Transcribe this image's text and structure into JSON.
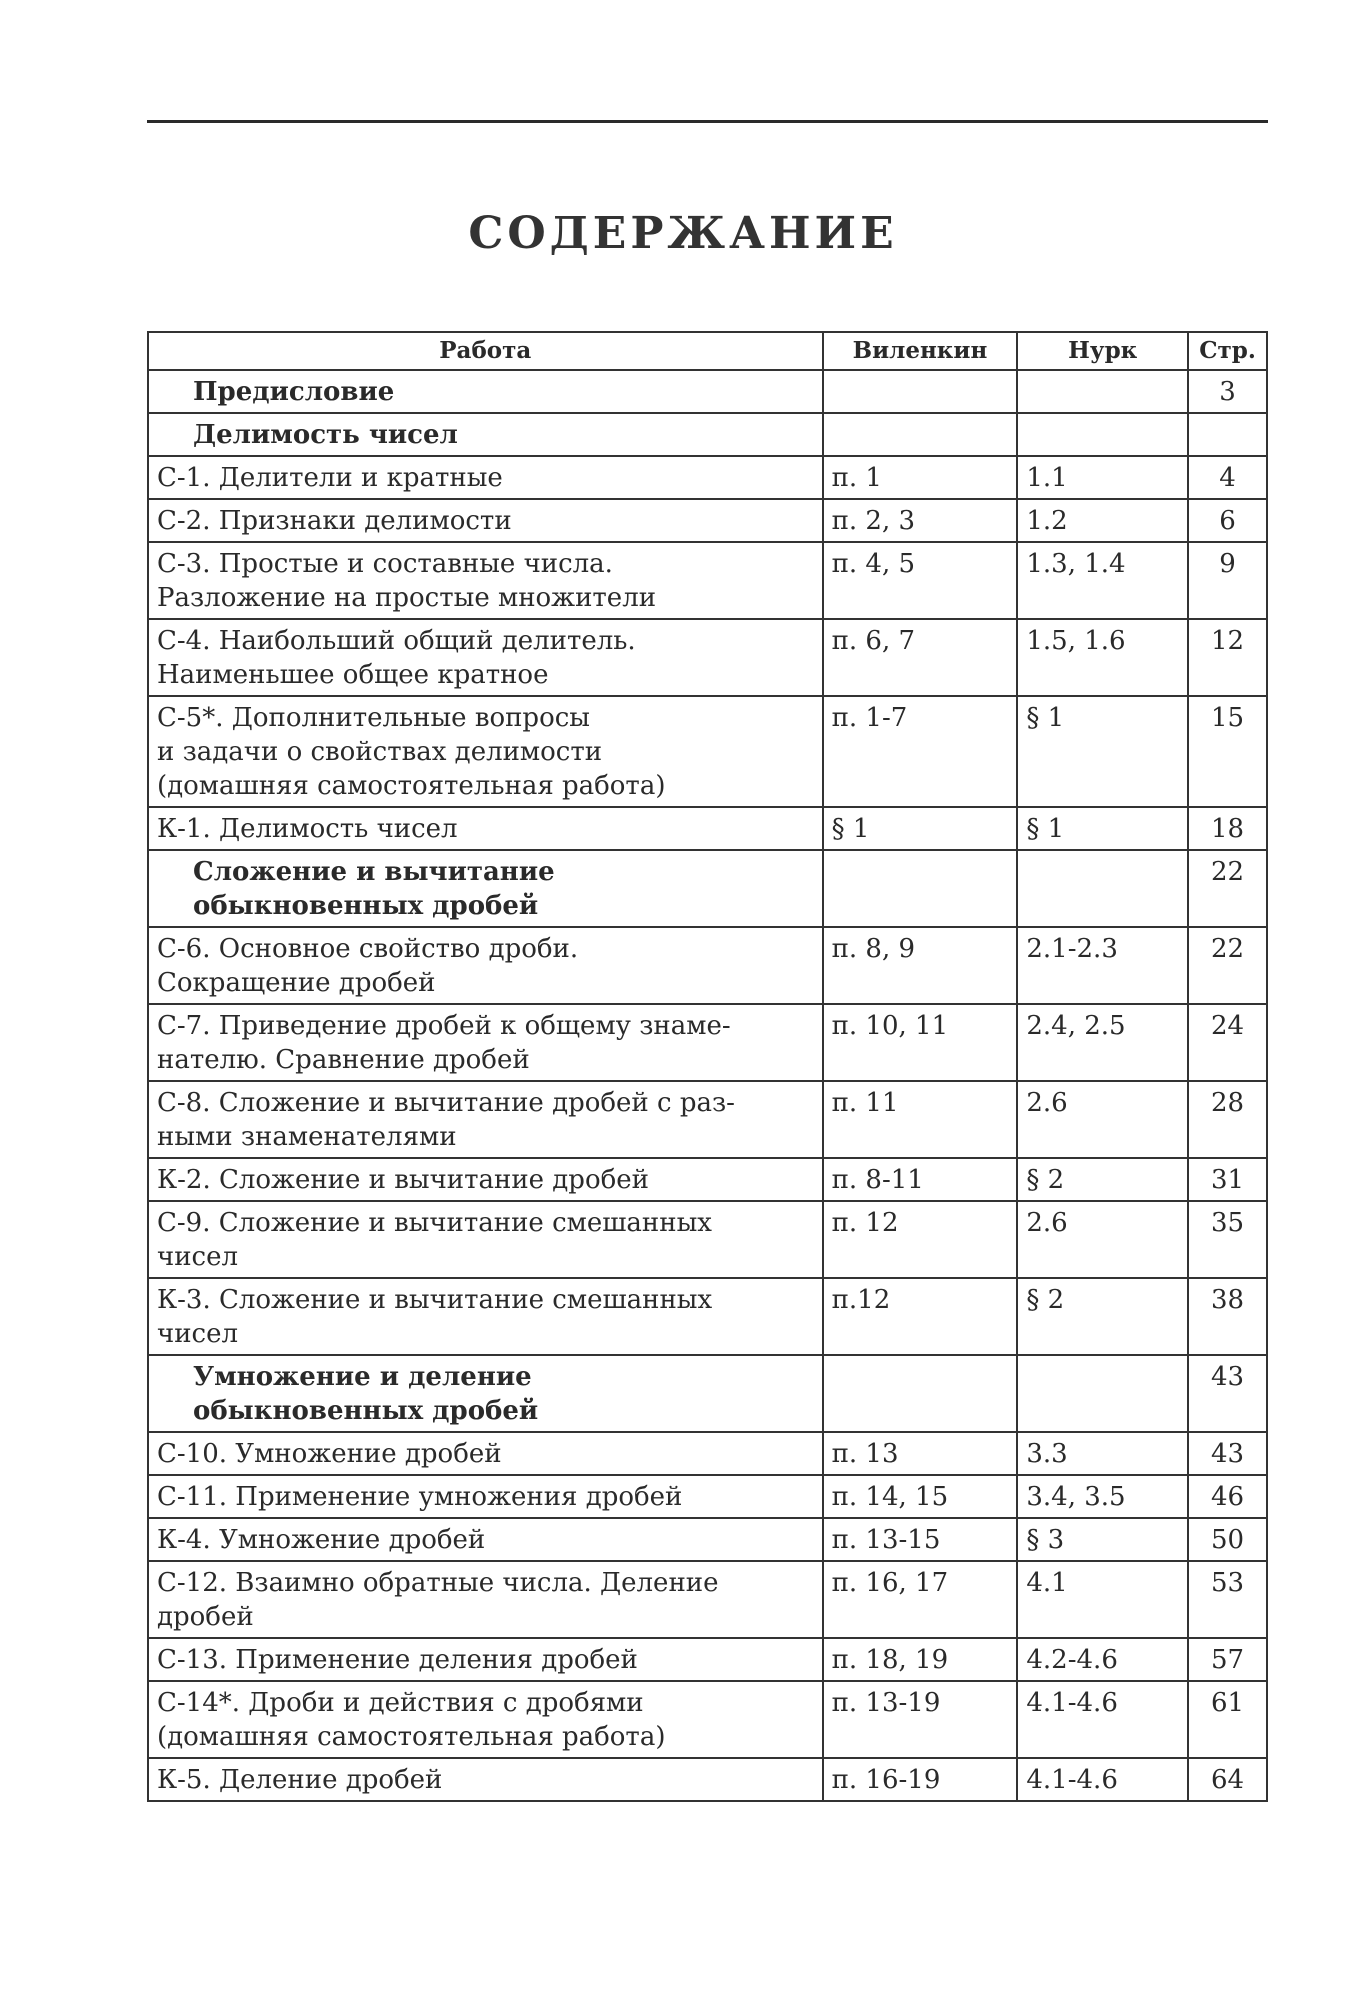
{
  "title": "СОДЕРЖАНИЕ",
  "headers": [
    "Работа",
    "Виленкин",
    "Нурк",
    "Стр."
  ],
  "rows": [
    {
      "work": "Предисловие",
      "vil": "",
      "nurk": "",
      "page": "3",
      "section": true
    },
    {
      "work": "Делимость чисел",
      "vil": "",
      "nurk": "",
      "page": "",
      "section": true
    },
    {
      "work": "С-1. Делители и кратные",
      "vil": "п. 1",
      "nurk": "1.1",
      "page": "4"
    },
    {
      "work": "С-2. Признаки делимости",
      "vil": "п. 2, 3",
      "nurk": "1.2",
      "page": "6"
    },
    {
      "work": "С-3. Простые и составные числа.\nРазложение на простые множители",
      "vil": "п. 4, 5",
      "nurk": "1.3, 1.4",
      "page": "9"
    },
    {
      "work": "С-4. Наибольший общий делитель.\nНаименьшее общее кратное",
      "vil": "п. 6, 7",
      "nurk": "1.5, 1.6",
      "page": "12"
    },
    {
      "work": "С-5*. Дополнительные вопросы\nи задачи о свойствах делимости\n(домашняя самостоятельная работа)",
      "vil": "п. 1-7",
      "nurk": "§ 1",
      "page": "15"
    },
    {
      "work": "К-1. Делимость чисел",
      "vil": "§ 1",
      "nurk": "§ 1",
      "page": "18"
    },
    {
      "work": "Сложение и вычитание\nобыкновенных дробей",
      "vil": "",
      "nurk": "",
      "page": "22",
      "section": true
    },
    {
      "work": "С-6. Основное свойство дроби.\nСокращение дробей",
      "vil": "п. 8, 9",
      "nurk": "2.1-2.3",
      "page": "22"
    },
    {
      "work": "С-7. Приведение дробей к общему знаме-\nнателю. Сравнение дробей",
      "vil": "п. 10, 11",
      "nurk": "2.4, 2.5",
      "page": "24"
    },
    {
      "work": "С-8. Сложение и вычитание дробей  с раз-\nными знаменателями",
      "vil": "п. 11",
      "nurk": "2.6",
      "page": "28"
    },
    {
      "work": "К-2. Сложение и вычитание дробей",
      "vil": "п. 8-11",
      "nurk": "§ 2",
      "page": "31"
    },
    {
      "work": "С-9. Сложение и вычитание смешанных\nчисел",
      "vil": "п. 12",
      "nurk": "2.6",
      "page": "35"
    },
    {
      "work": "К-3. Сложение и вычитание смешанных\nчисел",
      "vil": "п.12",
      "nurk": "§ 2",
      "page": "38"
    },
    {
      "work": "Умножение и деление\nобыкновенных дробей",
      "vil": "",
      "nurk": "",
      "page": "43",
      "section": true
    },
    {
      "work": "С-10. Умножение дробей",
      "vil": "п. 13",
      "nurk": "3.3",
      "page": "43"
    },
    {
      "work": "С-11. Применение умножения дробей",
      "vil": "п. 14, 15",
      "nurk": "3.4, 3.5",
      "page": "46"
    },
    {
      "work": "К-4. Умножение дробей",
      "vil": "п. 13-15",
      "nurk": "§ 3",
      "page": "50"
    },
    {
      "work": "С-12. Взаимно обратные числа. Деление\nдробей",
      "vil": "п. 16, 17",
      "nurk": "4.1",
      "page": "53"
    },
    {
      "work": "С-13. Применение деления дробей",
      "vil": "п. 18, 19",
      "nurk": "4.2-4.6",
      "page": "57"
    },
    {
      "work": "С-14*. Дроби и действия с дробями\n(домашняя самостоятельная работа)",
      "vil": "п. 13-19",
      "nurk": "4.1-4.6",
      "page": "61"
    },
    {
      "work": "К-5. Деление дробей",
      "vil": "п. 16-19",
      "nurk": "4.1-4.6",
      "page": "64"
    }
  ]
}
